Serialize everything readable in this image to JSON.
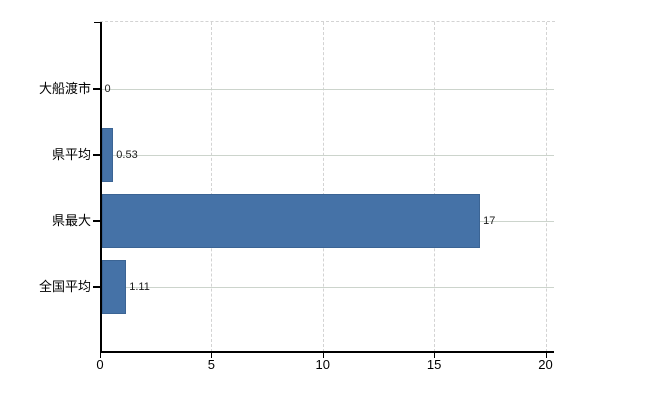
{
  "chart_data": {
    "type": "bar",
    "orientation": "horizontal",
    "title": "",
    "categories": [
      "大船渡市",
      "県平均",
      "県最大",
      "全国平均"
    ],
    "values": [
      0,
      0.53,
      17,
      1.11
    ],
    "value_labels": [
      "0",
      "0.53",
      "17",
      "1.11"
    ],
    "x_tick_labels": [
      "0",
      "5",
      "10",
      "15",
      "20"
    ],
    "x_tick_values": [
      0,
      5,
      10,
      15,
      20
    ],
    "xlim": [
      0,
      20
    ],
    "grid": "on",
    "legend_position": "none",
    "bar_color": "#4572a7",
    "bar_border_color": "#3b6494",
    "axis_color": "#000000",
    "h_gridline_color": "#ccd4cc",
    "v_gridline_color": "#d3d3d3",
    "label_color": "#000000",
    "value_label_color": "#1a1a1a",
    "background_color": "#ffffff"
  }
}
